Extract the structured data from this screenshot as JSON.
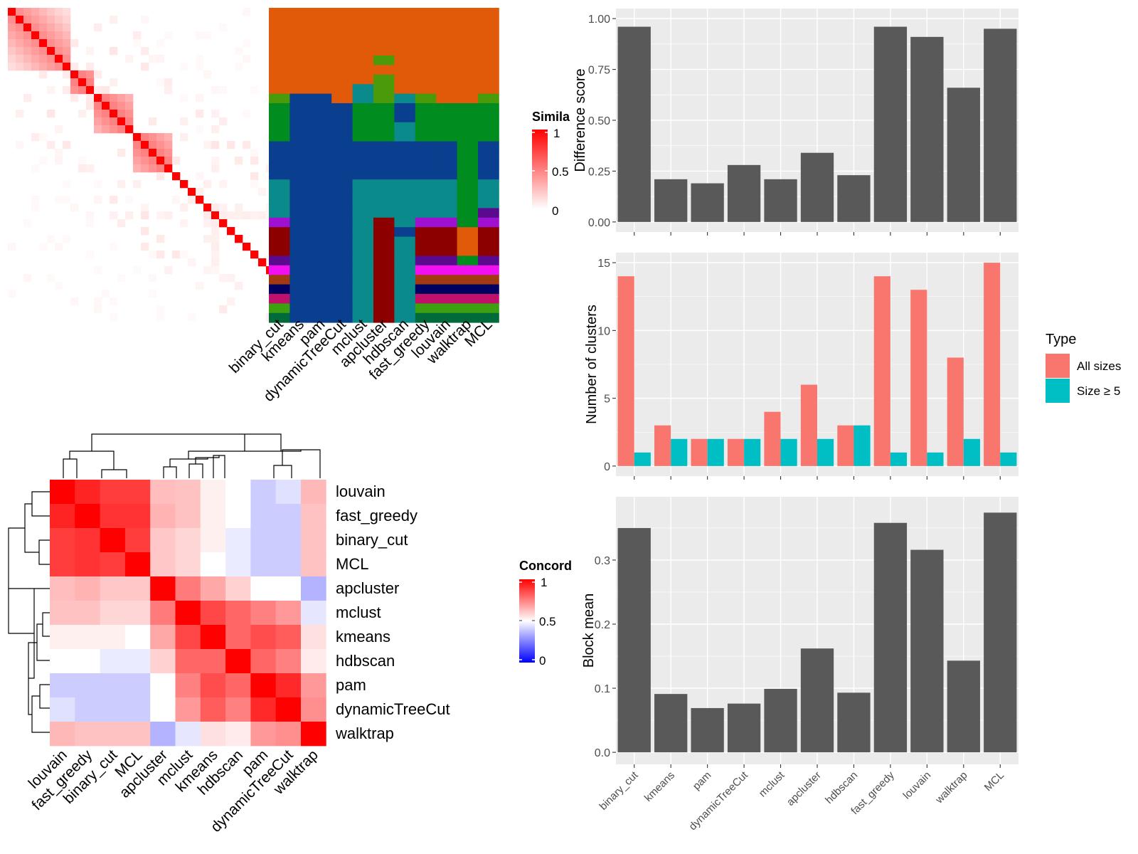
{
  "methods_cols": [
    "binary_cut",
    "kmeans",
    "pam",
    "dynamicTreeCut",
    "mclust",
    "apcluster",
    "hdbscan",
    "fast_greedy",
    "louvain",
    "walktrap",
    "MCL"
  ],
  "similarity_legend": {
    "title": "Simila",
    "ticks": [
      "1",
      "0.5",
      "0"
    ],
    "colors": [
      "#ffffff",
      "#ff0000"
    ]
  },
  "concordance_legend": {
    "title": "Concord",
    "ticks": [
      "1",
      "0.5",
      "0"
    ],
    "colors": [
      "#0000ff",
      "#ffffff",
      "#ff0000"
    ]
  },
  "type_legend": {
    "title": "Type",
    "items": [
      {
        "label": "All sizes",
        "color": "#F8766D"
      },
      {
        "label": "Size ≥ 5",
        "color": "#00BFC4"
      }
    ]
  },
  "chart_data": [
    {
      "type": "heatmap",
      "name": "term-similarity",
      "n": 40,
      "block_sizes": [
        8,
        3,
        5,
        5,
        1,
        1,
        1,
        1,
        1,
        1,
        1,
        1,
        1,
        1,
        1,
        1,
        1,
        1,
        1,
        1,
        1,
        1
      ],
      "colors": [
        "#ffffff",
        "#ff0000"
      ]
    },
    {
      "type": "heatmap",
      "name": "cluster-assignments",
      "columns": [
        "binary_cut",
        "kmeans",
        "pam",
        "dynamicTreeCut",
        "mclust",
        "apcluster",
        "hdbscan",
        "fast_greedy",
        "louvain",
        "walktrap",
        "MCL"
      ],
      "rows": [
        [
          "#E05A0A",
          "#E05A0A",
          "#E05A0A",
          "#E05A0A",
          "#E05A0A",
          "#E05A0A",
          "#E05A0A",
          "#E05A0A",
          "#E05A0A",
          "#E05A0A",
          "#E05A0A"
        ],
        [
          "#E05A0A",
          "#E05A0A",
          "#E05A0A",
          "#E05A0A",
          "#E05A0A",
          "#E05A0A",
          "#E05A0A",
          "#E05A0A",
          "#E05A0A",
          "#E05A0A",
          "#E05A0A"
        ],
        [
          "#E05A0A",
          "#E05A0A",
          "#E05A0A",
          "#E05A0A",
          "#E05A0A",
          "#E05A0A",
          "#E05A0A",
          "#E05A0A",
          "#E05A0A",
          "#E05A0A",
          "#E05A0A"
        ],
        [
          "#E05A0A",
          "#E05A0A",
          "#E05A0A",
          "#E05A0A",
          "#E05A0A",
          "#E05A0A",
          "#E05A0A",
          "#E05A0A",
          "#E05A0A",
          "#E05A0A",
          "#E05A0A"
        ],
        [
          "#E05A0A",
          "#E05A0A",
          "#E05A0A",
          "#E05A0A",
          "#E05A0A",
          "#E05A0A",
          "#E05A0A",
          "#E05A0A",
          "#E05A0A",
          "#E05A0A",
          "#E05A0A"
        ],
        [
          "#E05A0A",
          "#E05A0A",
          "#E05A0A",
          "#E05A0A",
          "#E05A0A",
          "#4B9A0A",
          "#E05A0A",
          "#E05A0A",
          "#E05A0A",
          "#E05A0A",
          "#E05A0A"
        ],
        [
          "#E05A0A",
          "#E05A0A",
          "#E05A0A",
          "#E05A0A",
          "#E05A0A",
          "#E05A0A",
          "#E05A0A",
          "#E05A0A",
          "#E05A0A",
          "#E05A0A",
          "#E05A0A"
        ],
        [
          "#E05A0A",
          "#E05A0A",
          "#E05A0A",
          "#E05A0A",
          "#E05A0A",
          "#4B9A0A",
          "#E05A0A",
          "#E05A0A",
          "#E05A0A",
          "#E05A0A",
          "#E05A0A"
        ],
        [
          "#E05A0A",
          "#E05A0A",
          "#E05A0A",
          "#E05A0A",
          "#0A8A8A",
          "#4B9A0A",
          "#E05A0A",
          "#E05A0A",
          "#E05A0A",
          "#E05A0A",
          "#E05A0A"
        ],
        [
          "#4B9A0A",
          "#0A3F8F",
          "#0A3F8F",
          "#E05A0A",
          "#0A8A8A",
          "#4B9A0A",
          "#0A8A8A",
          "#4B9A0A",
          "#E05A0A",
          "#E05A0A",
          "#4B9A0A"
        ],
        [
          "#008C1E",
          "#0A3F8F",
          "#0A3F8F",
          "#0A3F8F",
          "#008C1E",
          "#008C1E",
          "#0A3F8F",
          "#008C1E",
          "#008C1E",
          "#008C1E",
          "#008C1E"
        ],
        [
          "#008C1E",
          "#0A3F8F",
          "#0A3F8F",
          "#0A3F8F",
          "#008C1E",
          "#008C1E",
          "#0A3F8F",
          "#008C1E",
          "#008C1E",
          "#008C1E",
          "#008C1E"
        ],
        [
          "#008C1E",
          "#0A3F8F",
          "#0A3F8F",
          "#0A3F8F",
          "#008C1E",
          "#008C1E",
          "#0A8A8A",
          "#008C1E",
          "#008C1E",
          "#008C1E",
          "#008C1E"
        ],
        [
          "#008C1E",
          "#0A3F8F",
          "#0A3F8F",
          "#0A3F8F",
          "#008C1E",
          "#008C1E",
          "#0A8A8A",
          "#008C1E",
          "#008C1E",
          "#008C1E",
          "#008C1E"
        ],
        [
          "#0A3F8F",
          "#0A3F8F",
          "#0A3F8F",
          "#0A3F8F",
          "#0A3F8F",
          "#0A3F8F",
          "#0A3F8F",
          "#0A3F8F",
          "#0A3F8F",
          "#008C1E",
          "#0A3F8F"
        ],
        [
          "#0A3F8F",
          "#0A3F8F",
          "#0A3F8F",
          "#0A3F8F",
          "#0A3F8F",
          "#0A3F8F",
          "#0A3F8F",
          "#0A3F8F",
          "#0A3F8F",
          "#008C1E",
          "#0A3F8F"
        ],
        [
          "#0A3F8F",
          "#0A3F8F",
          "#0A3F8F",
          "#0A3F8F",
          "#0A3F8F",
          "#0A3F8F",
          "#0A3F8F",
          "#0A3F8F",
          "#0A3F8F",
          "#008C1E",
          "#0A3F8F"
        ],
        [
          "#0A3F8F",
          "#0A3F8F",
          "#0A3F8F",
          "#0A3F8F",
          "#0A3F8F",
          "#0A3F8F",
          "#0A3F8F",
          "#0A3F8F",
          "#0A3F8F",
          "#008C1E",
          "#0A3F8F"
        ],
        [
          "#0A8A8A",
          "#0A3F8F",
          "#0A3F8F",
          "#0A3F8F",
          "#0A8A8A",
          "#0A8A8A",
          "#0A8A8A",
          "#0A8A8A",
          "#0A8A8A",
          "#008C1E",
          "#0A8A8A"
        ],
        [
          "#0A8A8A",
          "#0A3F8F",
          "#0A3F8F",
          "#0A3F8F",
          "#0A8A8A",
          "#0A8A8A",
          "#0A8A8A",
          "#0A8A8A",
          "#0A8A8A",
          "#008C1E",
          "#0A8A8A"
        ],
        [
          "#0A8A8A",
          "#0A3F8F",
          "#0A3F8F",
          "#0A3F8F",
          "#0A8A8A",
          "#0A8A8A",
          "#0A8A8A",
          "#0A8A8A",
          "#0A8A8A",
          "#008C1E",
          "#0A8A8A"
        ],
        [
          "#0A8A8A",
          "#0A3F8F",
          "#0A3F8F",
          "#0A3F8F",
          "#0A8A8A",
          "#0A8A8A",
          "#0A8A8A",
          "#0A8A8A",
          "#0A8A8A",
          "#008C1E",
          "#5A0A8F"
        ],
        [
          "#A010D0",
          "#0A3F8F",
          "#0A3F8F",
          "#0A3F8F",
          "#0A8A8A",
          "#8C0000",
          "#0A8A8A",
          "#A010D0",
          "#A010D0",
          "#008C1E",
          "#A010D0"
        ],
        [
          "#8C0000",
          "#0A3F8F",
          "#0A3F8F",
          "#0A3F8F",
          "#0A8A8A",
          "#8C0000",
          "#0A3F8F",
          "#8C0000",
          "#8C0000",
          "#E05A0A",
          "#8C0000"
        ],
        [
          "#8C0000",
          "#0A3F8F",
          "#0A3F8F",
          "#0A3F8F",
          "#0A8A8A",
          "#8C0000",
          "#0A8A8A",
          "#8C0000",
          "#8C0000",
          "#E05A0A",
          "#8C0000"
        ],
        [
          "#8C0000",
          "#0A3F8F",
          "#0A3F8F",
          "#0A3F8F",
          "#0A8A8A",
          "#8C0000",
          "#0A8A8A",
          "#8C0000",
          "#8C0000",
          "#E05A0A",
          "#8C0000"
        ],
        [
          "#5A0A8F",
          "#0A3F8F",
          "#0A3F8F",
          "#0A3F8F",
          "#0A8A8A",
          "#8C0000",
          "#0A8A8A",
          "#5A0A8F",
          "#5A0A8F",
          "#008C1E",
          "#5A0A8F"
        ],
        [
          "#F010F0",
          "#0A3F8F",
          "#0A3F8F",
          "#0A3F8F",
          "#0A8A8A",
          "#8C0000",
          "#0A8A8A",
          "#F010F0",
          "#F010F0",
          "#F010F0",
          "#F010F0"
        ],
        [
          "#A03A10",
          "#0A3F8F",
          "#0A3F8F",
          "#0A3F8F",
          "#0A8A8A",
          "#8C0000",
          "#0A8A8A",
          "#A03A10",
          "#A03A10",
          "#A03A10",
          "#A03A10"
        ],
        [
          "#000060",
          "#0A3F8F",
          "#0A3F8F",
          "#0A3F8F",
          "#0A8A8A",
          "#8C0000",
          "#0A8A8A",
          "#000060",
          "#000060",
          "#000060",
          "#000060"
        ],
        [
          "#C0106A",
          "#0A3F8F",
          "#0A3F8F",
          "#0A3F8F",
          "#0A8A8A",
          "#8C0000",
          "#0A8A8A",
          "#C0106A",
          "#C0106A",
          "#C0106A",
          "#C0106A"
        ],
        [
          "#3CA010",
          "#0A3F8F",
          "#0A3F8F",
          "#0A3F8F",
          "#0A8A8A",
          "#8C0000",
          "#0A8A8A",
          "#3CA010",
          "#3CA010",
          "#3CA010",
          "#3CA010"
        ],
        [
          "#006A3A",
          "#0A3F8F",
          "#0A3F8F",
          "#0A3F8F",
          "#0A8A8A",
          "#8C0000",
          "#0A8A8A",
          "#006A3A",
          "#006A3A",
          "#006A3A",
          "#006A3A"
        ]
      ]
    },
    {
      "type": "heatmap",
      "name": "method-concordance",
      "rows": [
        "louvain",
        "fast_greedy",
        "binary_cut",
        "MCL",
        "apcluster",
        "mclust",
        "kmeans",
        "hdbscan",
        "pam",
        "dynamicTreeCut",
        "walktrap"
      ],
      "columns": [
        "louvain",
        "fast_greedy",
        "binary_cut",
        "MCL",
        "apcluster",
        "mclust",
        "kmeans",
        "hdbscan",
        "pam",
        "dynamicTreeCut",
        "walktrap"
      ],
      "values": [
        [
          1.0,
          0.93,
          0.88,
          0.88,
          0.63,
          0.62,
          0.53,
          0.5,
          0.4,
          0.44,
          0.64
        ],
        [
          0.93,
          1.0,
          0.9,
          0.9,
          0.65,
          0.62,
          0.53,
          0.5,
          0.4,
          0.4,
          0.62
        ],
        [
          0.88,
          0.9,
          1.0,
          0.88,
          0.61,
          0.58,
          0.53,
          0.46,
          0.4,
          0.4,
          0.62
        ],
        [
          0.88,
          0.9,
          0.88,
          1.0,
          0.61,
          0.58,
          0.5,
          0.46,
          0.4,
          0.4,
          0.62
        ],
        [
          0.63,
          0.65,
          0.61,
          0.61,
          1.0,
          0.76,
          0.67,
          0.59,
          0.5,
          0.5,
          0.35
        ],
        [
          0.62,
          0.62,
          0.58,
          0.58,
          0.76,
          1.0,
          0.86,
          0.8,
          0.75,
          0.7,
          0.45
        ],
        [
          0.53,
          0.53,
          0.53,
          0.5,
          0.67,
          0.86,
          1.0,
          0.8,
          0.85,
          0.82,
          0.56
        ],
        [
          0.5,
          0.5,
          0.46,
          0.46,
          0.59,
          0.8,
          0.8,
          1.0,
          0.8,
          0.75,
          0.54
        ],
        [
          0.4,
          0.4,
          0.4,
          0.4,
          0.5,
          0.75,
          0.85,
          0.8,
          1.0,
          0.92,
          0.7
        ],
        [
          0.44,
          0.4,
          0.4,
          0.4,
          0.5,
          0.7,
          0.82,
          0.75,
          0.92,
          1.0,
          0.72
        ],
        [
          0.64,
          0.62,
          0.62,
          0.62,
          0.35,
          0.45,
          0.56,
          0.54,
          0.7,
          0.72,
          1.0
        ]
      ],
      "colors": [
        "#0000ff",
        "#ffffff",
        "#ff0000"
      ]
    },
    {
      "type": "bar",
      "name": "difference-score",
      "categories": [
        "binary_cut",
        "kmeans",
        "pam",
        "dynamicTreeCut",
        "mclust",
        "apcluster",
        "hdbscan",
        "fast_greedy",
        "louvain",
        "walktrap",
        "MCL"
      ],
      "values": [
        0.96,
        0.21,
        0.19,
        0.28,
        0.21,
        0.34,
        0.23,
        0.96,
        0.91,
        0.66,
        0.95
      ],
      "ylabel": "Difference score",
      "ylim": [
        0,
        1.0
      ],
      "yticks": [
        "0.00",
        "0.25",
        "0.50",
        "0.75",
        "1.00"
      ]
    },
    {
      "type": "bar",
      "name": "number-of-clusters",
      "categories": [
        "binary_cut",
        "kmeans",
        "pam",
        "dynamicTreeCut",
        "mclust",
        "apcluster",
        "hdbscan",
        "fast_greedy",
        "louvain",
        "walktrap",
        "MCL"
      ],
      "series": [
        {
          "name": "All sizes",
          "values": [
            14,
            3,
            2,
            2,
            4,
            6,
            3,
            14,
            13,
            8,
            15
          ]
        },
        {
          "name": "Size ≥ 5",
          "values": [
            1,
            2,
            2,
            2,
            2,
            2,
            3,
            1,
            1,
            2,
            1
          ]
        }
      ],
      "ylabel": "Number of clusters",
      "ylim": [
        0,
        15
      ],
      "yticks": [
        "0",
        "5",
        "10",
        "15"
      ],
      "legend": "right"
    },
    {
      "type": "bar",
      "name": "block-mean",
      "categories": [
        "binary_cut",
        "kmeans",
        "pam",
        "dynamicTreeCut",
        "mclust",
        "apcluster",
        "hdbscan",
        "fast_greedy",
        "louvain",
        "walktrap",
        "MCL"
      ],
      "values": [
        0.35,
        0.091,
        0.069,
        0.076,
        0.099,
        0.162,
        0.093,
        0.358,
        0.316,
        0.143,
        0.374
      ],
      "ylabel": "Block mean",
      "ylim": [
        0,
        0.38
      ],
      "yticks": [
        "0.0",
        "0.1",
        "0.2",
        "0.3"
      ]
    }
  ]
}
